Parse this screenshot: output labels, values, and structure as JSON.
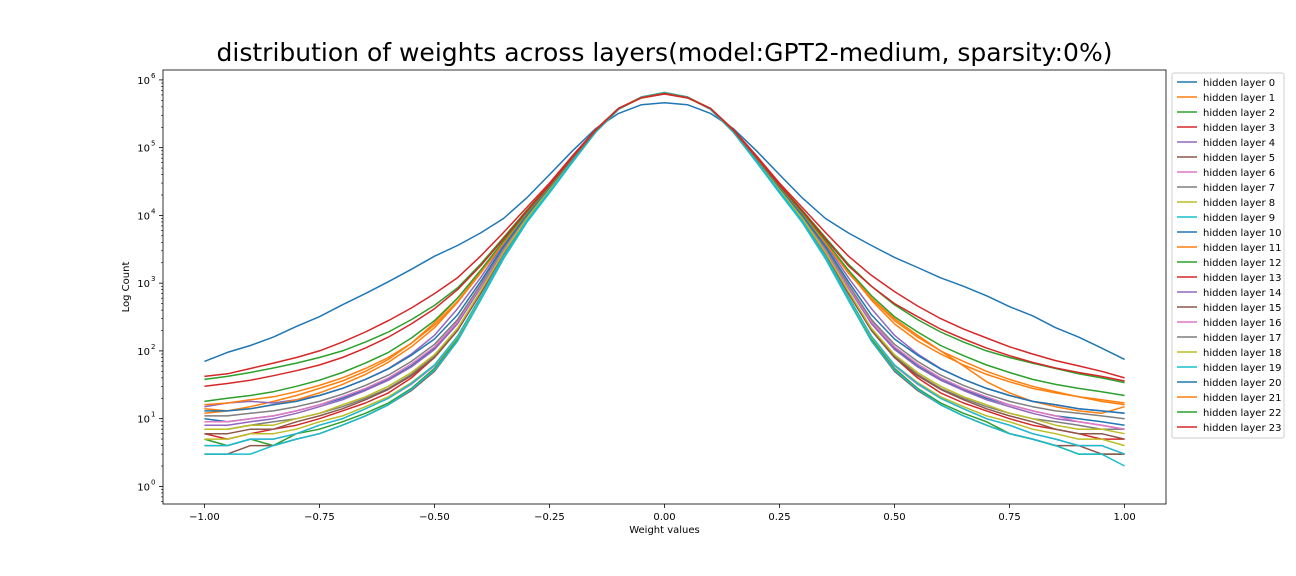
{
  "chart_data": {
    "type": "line",
    "title": "distribution of weights across layers(model:GPT2-medium, sparsity:0%)",
    "xlabel": "Weight values",
    "ylabel": "Log Count",
    "xlim": [
      -1.09,
      1.09
    ],
    "ylim": [
      0.55,
      1400000
    ],
    "yscale": "log",
    "grid": false,
    "legend_position": "outside-right",
    "x_ticks": [
      {
        "value": -1.0,
        "label": "−1.00"
      },
      {
        "value": -0.75,
        "label": "−0.75"
      },
      {
        "value": -0.5,
        "label": "−0.50"
      },
      {
        "value": -0.25,
        "label": "−0.25"
      },
      {
        "value": 0.0,
        "label": "0.00"
      },
      {
        "value": 0.25,
        "label": "0.25"
      },
      {
        "value": 0.5,
        "label": "0.50"
      },
      {
        "value": 0.75,
        "label": "0.75"
      },
      {
        "value": 1.0,
        "label": "1.00"
      }
    ],
    "y_ticks": [
      {
        "value": 1,
        "base": "10",
        "exp": "0"
      },
      {
        "value": 10,
        "base": "10",
        "exp": "1"
      },
      {
        "value": 100,
        "base": "10",
        "exp": "2"
      },
      {
        "value": 1000,
        "base": "10",
        "exp": "3"
      },
      {
        "value": 10000,
        "base": "10",
        "exp": "4"
      },
      {
        "value": 100000,
        "base": "10",
        "exp": "5"
      },
      {
        "value": 1000000,
        "base": "10",
        "exp": "6"
      }
    ],
    "x": [
      -1.0,
      -0.95,
      -0.9,
      -0.85,
      -0.8,
      -0.75,
      -0.7,
      -0.65,
      -0.6,
      -0.55,
      -0.5,
      -0.45,
      -0.4,
      -0.35,
      -0.3,
      -0.25,
      -0.2,
      -0.15,
      -0.1,
      -0.05,
      0.0,
      0.05,
      0.1,
      0.15,
      0.2,
      0.25,
      0.3,
      0.35,
      0.4,
      0.45,
      0.5,
      0.55,
      0.6,
      0.65,
      0.7,
      0.75,
      0.8,
      0.85,
      0.9,
      0.95,
      1.0
    ],
    "series": [
      {
        "name": "hidden layer 0",
        "color": "#1f77b4",
        "values": [
          70,
          95,
          120,
          160,
          230,
          320,
          480,
          700,
          1050,
          1600,
          2500,
          3600,
          5500,
          9000,
          18000,
          40000,
          90000,
          190000,
          320000,
          430000,
          460000,
          430000,
          320000,
          190000,
          90000,
          40000,
          18000,
          9000,
          5500,
          3600,
          2400,
          1700,
          1200,
          900,
          650,
          450,
          330,
          220,
          160,
          110,
          75
        ]
      },
      {
        "name": "hidden layer 1",
        "color": "#ff7f0e",
        "values": [
          14,
          13,
          15,
          18,
          22,
          28,
          36,
          50,
          75,
          130,
          260,
          600,
          1500,
          4000,
          10500,
          26000,
          70000,
          180000,
          380000,
          560000,
          640000,
          560000,
          380000,
          180000,
          70000,
          26000,
          10500,
          4000,
          1500,
          600,
          300,
          170,
          100,
          60,
          35,
          24,
          18,
          15,
          13,
          12,
          15
        ]
      },
      {
        "name": "hidden layer 2",
        "color": "#2ca02c",
        "values": [
          5,
          4,
          5,
          4,
          6,
          7,
          9,
          12,
          17,
          28,
          55,
          150,
          600,
          2400,
          8000,
          22000,
          62000,
          170000,
          370000,
          560000,
          650000,
          560000,
          370000,
          170000,
          62000,
          22000,
          8000,
          2400,
          600,
          150,
          55,
          28,
          17,
          12,
          9,
          6,
          5,
          4,
          3,
          3,
          3
        ]
      },
      {
        "name": "hidden layer 3",
        "color": "#d62728",
        "values": [
          6,
          5,
          6,
          7,
          8,
          10,
          13,
          17,
          24,
          40,
          80,
          200,
          700,
          2700,
          8500,
          23000,
          64000,
          170000,
          370000,
          550000,
          640000,
          550000,
          370000,
          170000,
          64000,
          23000,
          8500,
          2700,
          700,
          200,
          80,
          40,
          24,
          17,
          13,
          10,
          8,
          7,
          6,
          5,
          5
        ]
      },
      {
        "name": "hidden layer 4",
        "color": "#9467bd",
        "values": [
          15,
          17,
          18,
          17,
          19,
          22,
          28,
          38,
          55,
          90,
          170,
          420,
          1200,
          3800,
          10500,
          27000,
          72000,
          180000,
          380000,
          550000,
          630000,
          550000,
          380000,
          180000,
          72000,
          27000,
          10500,
          3800,
          1200,
          420,
          170,
          90,
          55,
          38,
          28,
          22,
          18,
          16,
          14,
          13,
          12
        ]
      },
      {
        "name": "hidden layer 5",
        "color": "#8c564b",
        "values": [
          3,
          3,
          4,
          4,
          5,
          6,
          8,
          11,
          16,
          26,
          50,
          140,
          560,
          2300,
          7800,
          22000,
          62000,
          170000,
          370000,
          560000,
          650000,
          560000,
          370000,
          170000,
          62000,
          22000,
          7800,
          2300,
          560,
          140,
          50,
          26,
          16,
          11,
          8,
          6,
          5,
          4,
          4,
          3,
          3
        ]
      },
      {
        "name": "hidden layer 6",
        "color": "#e377c2",
        "values": [
          4,
          4,
          5,
          5,
          6,
          8,
          10,
          14,
          20,
          32,
          60,
          160,
          620,
          2500,
          8200,
          22500,
          63000,
          170000,
          370000,
          560000,
          650000,
          560000,
          370000,
          170000,
          63000,
          22500,
          8200,
          2500,
          620,
          160,
          60,
          32,
          20,
          14,
          10,
          8,
          6,
          5,
          4,
          4,
          3
        ]
      },
      {
        "name": "hidden layer 7",
        "color": "#7f7f7f",
        "values": [
          7,
          7,
          8,
          9,
          10,
          12,
          15,
          20,
          28,
          45,
          85,
          210,
          750,
          2800,
          8800,
          23500,
          65000,
          172000,
          372000,
          555000,
          645000,
          555000,
          372000,
          172000,
          65000,
          23500,
          8800,
          2800,
          750,
          210,
          85,
          45,
          28,
          20,
          15,
          12,
          10,
          9,
          8,
          7,
          7
        ]
      },
      {
        "name": "hidden layer 8",
        "color": "#bcbd22",
        "values": [
          5,
          5,
          6,
          6,
          7,
          9,
          11,
          15,
          21,
          34,
          62,
          160,
          600,
          2400,
          8000,
          22000,
          61000,
          168000,
          370000,
          560000,
          655000,
          560000,
          370000,
          168000,
          61000,
          22000,
          8000,
          2400,
          600,
          160,
          62,
          34,
          21,
          15,
          11,
          9,
          7,
          6,
          5,
          5,
          4
        ]
      },
      {
        "name": "hidden layer 9",
        "color": "#17becf",
        "values": [
          3,
          3,
          3,
          4,
          5,
          6,
          8,
          11,
          16,
          27,
          52,
          140,
          560,
          2300,
          7800,
          21500,
          61000,
          168000,
          370000,
          560000,
          650000,
          560000,
          370000,
          168000,
          61000,
          21500,
          7800,
          2300,
          560,
          140,
          52,
          27,
          16,
          11,
          8,
          6,
          5,
          4,
          3,
          3,
          2
        ]
      },
      {
        "name": "hidden layer 10",
        "color": "#1f77b4",
        "values": [
          10,
          9,
          10,
          11,
          13,
          16,
          20,
          27,
          38,
          60,
          110,
          270,
          900,
          3200,
          9500,
          25000,
          68000,
          175000,
          375000,
          550000,
          635000,
          550000,
          375000,
          175000,
          68000,
          25000,
          9500,
          3200,
          900,
          270,
          110,
          60,
          38,
          27,
          20,
          16,
          13,
          11,
          10,
          9,
          8
        ]
      },
      {
        "name": "hidden layer 11",
        "color": "#ff7f0e",
        "values": [
          12,
          13,
          14,
          16,
          19,
          24,
          32,
          45,
          68,
          115,
          220,
          520,
          1400,
          3900,
          10500,
          26500,
          70000,
          178000,
          378000,
          550000,
          632000,
          550000,
          378000,
          178000,
          70000,
          26500,
          10500,
          3900,
          1400,
          600,
          280,
          160,
          100,
          70,
          50,
          38,
          30,
          25,
          21,
          18,
          16
        ]
      },
      {
        "name": "hidden layer 12",
        "color": "#2ca02c",
        "values": [
          38,
          42,
          48,
          56,
          66,
          80,
          100,
          135,
          190,
          290,
          470,
          850,
          1900,
          4700,
          11800,
          28500,
          73000,
          182000,
          380000,
          545000,
          625000,
          545000,
          380000,
          182000,
          73000,
          28500,
          11800,
          4700,
          1900,
          900,
          480,
          290,
          190,
          135,
          100,
          80,
          66,
          55,
          46,
          40,
          34
        ]
      },
      {
        "name": "hidden layer 13",
        "color": "#d62728",
        "values": [
          42,
          46,
          55,
          66,
          80,
          100,
          135,
          190,
          280,
          430,
          700,
          1200,
          2500,
          5600,
          13000,
          30000,
          76000,
          185000,
          380000,
          540000,
          620000,
          540000,
          380000,
          185000,
          76000,
          30000,
          13000,
          5600,
          2500,
          1300,
          750,
          460,
          300,
          210,
          155,
          115,
          90,
          72,
          60,
          50,
          40
        ]
      },
      {
        "name": "hidden layer 14",
        "color": "#9467bd",
        "values": [
          8,
          8,
          9,
          10,
          12,
          15,
          19,
          26,
          37,
          58,
          105,
          250,
          850,
          3100,
          9300,
          24500,
          67000,
          174000,
          374000,
          552000,
          638000,
          552000,
          374000,
          174000,
          67000,
          24500,
          9300,
          3100,
          850,
          250,
          105,
          58,
          37,
          26,
          19,
          15,
          12,
          10,
          9,
          8,
          7
        ]
      },
      {
        "name": "hidden layer 15",
        "color": "#8c564b",
        "values": [
          6,
          6,
          7,
          7,
          9,
          11,
          14,
          19,
          27,
          43,
          80,
          200,
          720,
          2800,
          8700,
          23300,
          65000,
          172000,
          372000,
          555000,
          645000,
          555000,
          372000,
          172000,
          65000,
          23300,
          8700,
          2800,
          720,
          200,
          80,
          43,
          27,
          19,
          14,
          11,
          9,
          7,
          6,
          6,
          5
        ]
      },
      {
        "name": "hidden layer 16",
        "color": "#e377c2",
        "values": [
          9,
          9,
          10,
          11,
          13,
          16,
          21,
          28,
          40,
          64,
          115,
          270,
          900,
          3200,
          9400,
          24700,
          67000,
          174000,
          374000,
          552000,
          638000,
          552000,
          374000,
          174000,
          67000,
          24700,
          9400,
          3200,
          900,
          270,
          115,
          64,
          40,
          28,
          21,
          16,
          13,
          11,
          9,
          8,
          7
        ]
      },
      {
        "name": "hidden layer 17",
        "color": "#7f7f7f",
        "values": [
          11,
          11,
          12,
          13,
          15,
          18,
          23,
          31,
          44,
          70,
          125,
          290,
          950,
          3300,
          9600,
          25000,
          68000,
          175000,
          375000,
          550000,
          636000,
          550000,
          375000,
          175000,
          68000,
          25000,
          9600,
          3300,
          950,
          290,
          125,
          70,
          44,
          31,
          23,
          18,
          15,
          13,
          12,
          11,
          10
        ]
      },
      {
        "name": "hidden layer 18",
        "color": "#bcbd22",
        "values": [
          7,
          7,
          8,
          8,
          10,
          12,
          16,
          21,
          30,
          48,
          88,
          215,
          760,
          2850,
          8900,
          23800,
          66000,
          173000,
          373000,
          553000,
          642000,
          553000,
          373000,
          173000,
          66000,
          23800,
          8900,
          2850,
          760,
          215,
          88,
          48,
          30,
          21,
          16,
          12,
          10,
          8,
          7,
          7,
          6
        ]
      },
      {
        "name": "hidden layer 19",
        "color": "#17becf",
        "values": [
          4,
          4,
          5,
          5,
          6,
          8,
          10,
          14,
          20,
          33,
          62,
          165,
          630,
          2500,
          8200,
          22500,
          63000,
          170000,
          370000,
          558000,
          648000,
          558000,
          370000,
          170000,
          63000,
          22500,
          8200,
          2500,
          630,
          165,
          62,
          33,
          20,
          14,
          10,
          8,
          6,
          5,
          4,
          4,
          3
        ]
      },
      {
        "name": "hidden layer 20",
        "color": "#1f77b4",
        "values": [
          13,
          13,
          14,
          16,
          18,
          22,
          28,
          38,
          54,
          86,
          150,
          340,
          1050,
          3500,
          10000,
          25800,
          69000,
          176000,
          376000,
          550000,
          634000,
          550000,
          376000,
          176000,
          69000,
          25800,
          10000,
          3500,
          1050,
          340,
          150,
          86,
          54,
          38,
          28,
          22,
          18,
          16,
          14,
          13,
          12
        ]
      },
      {
        "name": "hidden layer 21",
        "color": "#ff7f0e",
        "values": [
          16,
          17,
          19,
          21,
          25,
          31,
          40,
          55,
          80,
          130,
          240,
          540,
          1450,
          4000,
          10700,
          26800,
          70500,
          178500,
          378000,
          548000,
          630000,
          548000,
          378000,
          178500,
          70500,
          26800,
          10700,
          4000,
          1450,
          560,
          250,
          140,
          90,
          62,
          45,
          35,
          28,
          24,
          21,
          19,
          17
        ]
      },
      {
        "name": "hidden layer 22",
        "color": "#2ca02c",
        "values": [
          18,
          20,
          22,
          25,
          30,
          37,
          48,
          66,
          95,
          155,
          280,
          600,
          1550,
          4200,
          11000,
          27300,
          71500,
          180000,
          379000,
          547000,
          628000,
          547000,
          379000,
          180000,
          71500,
          27300,
          11000,
          4200,
          1550,
          650,
          320,
          190,
          120,
          85,
          62,
          48,
          38,
          32,
          28,
          25,
          22
        ]
      },
      {
        "name": "hidden layer 23",
        "color": "#d62728",
        "values": [
          30,
          33,
          37,
          43,
          51,
          62,
          80,
          110,
          160,
          250,
          420,
          800,
          1800,
          4500,
          11500,
          28000,
          72500,
          181000,
          380000,
          546000,
          626000,
          546000,
          380000,
          181000,
          72500,
          28000,
          11500,
          4500,
          1800,
          900,
          500,
          320,
          210,
          150,
          110,
          85,
          68,
          56,
          48,
          42,
          36
        ]
      }
    ]
  }
}
